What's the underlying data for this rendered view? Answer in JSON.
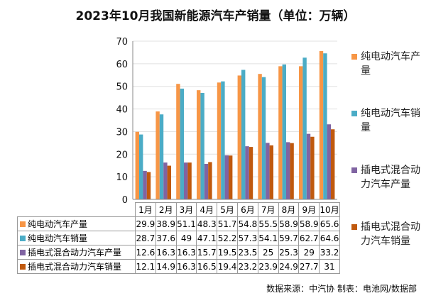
{
  "chart_data": {
    "type": "bar",
    "title": "2023年10月我国新能源汽车产销量（单位：万辆）",
    "categories": [
      "1月",
      "2月",
      "3月",
      "4月",
      "5月",
      "6月",
      "7月",
      "8月",
      "9月",
      "10月"
    ],
    "ylim": [
      0,
      70
    ],
    "yticks": [
      0,
      10,
      20,
      30,
      40,
      50,
      60,
      70
    ],
    "grid": true,
    "legend": "right",
    "series": [
      {
        "name": "纯电动汽车产量",
        "color": "#F79646",
        "values": [
          29.9,
          38.9,
          51.1,
          48.3,
          51.7,
          54.8,
          55.5,
          58.9,
          58.9,
          65.6
        ]
      },
      {
        "name": "纯电动汽车销量",
        "color": "#4BACC6",
        "values": [
          28.7,
          37.6,
          49,
          47.1,
          52.2,
          57.3,
          54.1,
          59.7,
          62.7,
          64.6
        ]
      },
      {
        "name": "插电式混合动力汽车产量",
        "color": "#8064A2",
        "values": [
          12.6,
          16.3,
          16.3,
          15.7,
          19.5,
          23.5,
          25,
          25.3,
          29,
          33.2
        ]
      },
      {
        "name": "插电式混合动力汽车销量",
        "color": "#C0590E",
        "values": [
          12.1,
          14.9,
          16.3,
          16.5,
          19.4,
          23.2,
          23.9,
          24.9,
          27.7,
          31
        ]
      }
    ]
  },
  "footer": "数据来源：中汽协  制表：电池网/数据部"
}
